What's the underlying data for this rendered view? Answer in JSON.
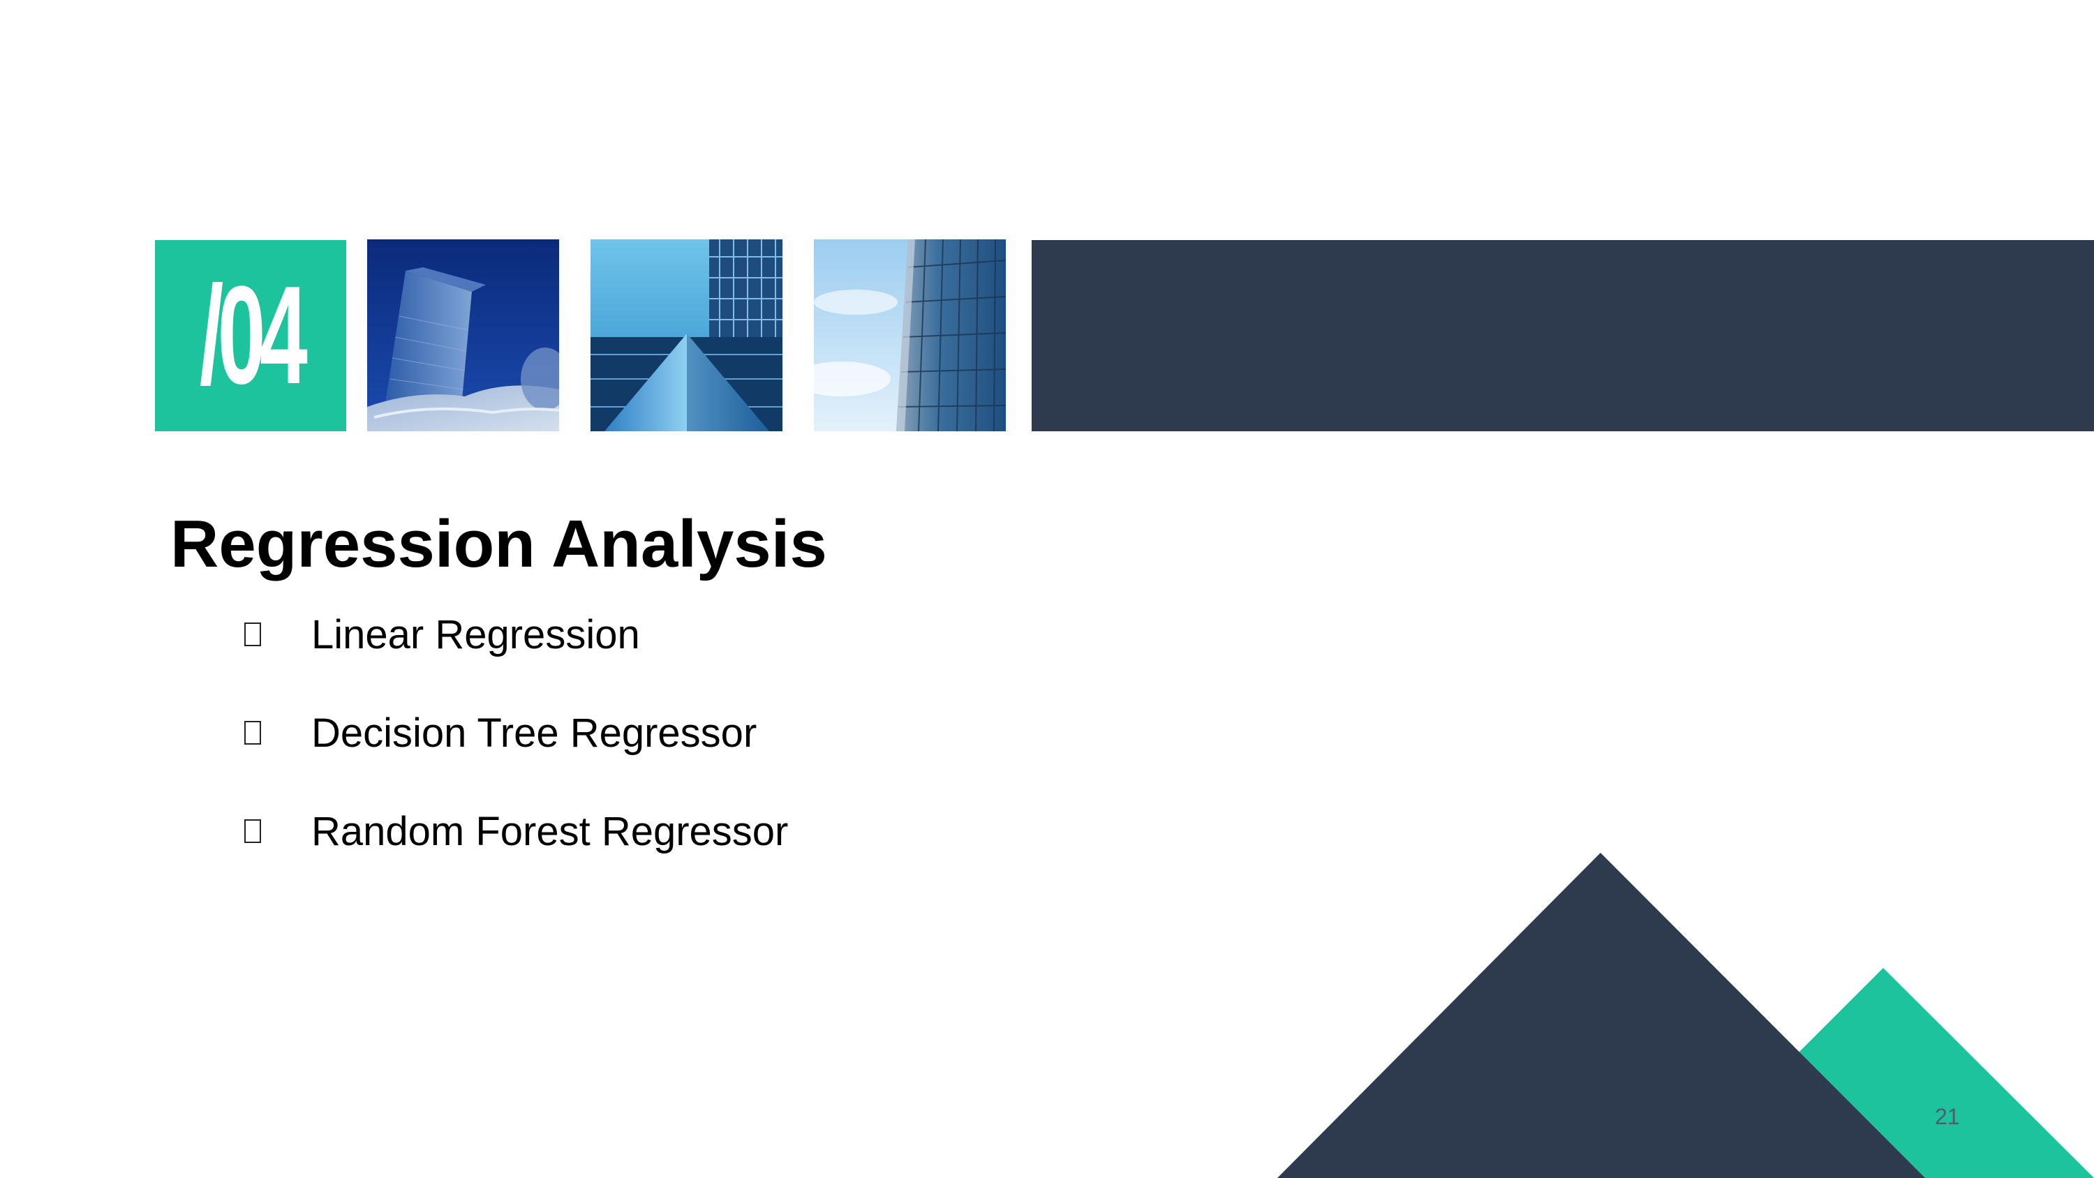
{
  "slide": {
    "section_number": "/04",
    "title": "Regression Analysis",
    "bullets": [
      {
        "icon": "checkbox-icon",
        "label": "Linear Regression"
      },
      {
        "icon": "checkbox-icon",
        "label": "Decision Tree Regressor"
      },
      {
        "icon": "checkbox-icon",
        "label": "Random Forest Regressor"
      }
    ],
    "page_number": "21"
  },
  "colors": {
    "accent_teal": "#1dc39c",
    "navy": "#2e3b4e",
    "text": "#000000"
  }
}
